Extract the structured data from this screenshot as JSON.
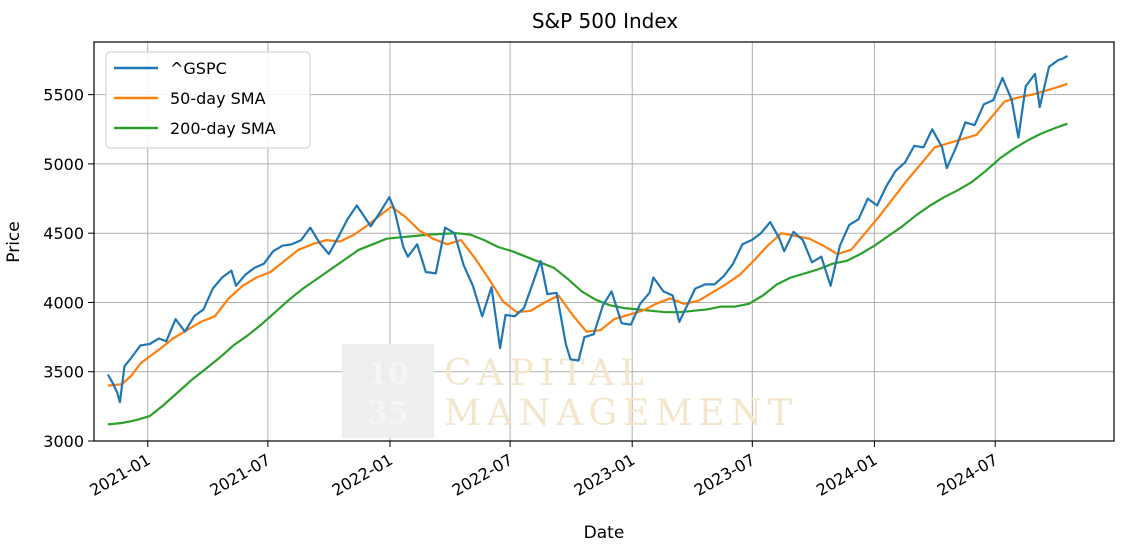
{
  "chart_data": {
    "type": "line",
    "title": "S&P 500 Index",
    "xlabel": "Date",
    "ylabel": "Price",
    "xlim": [
      "2020-10-12",
      "2024-12-27"
    ],
    "ylim": [
      3000,
      5880
    ],
    "grid": true,
    "legend_position": "top-left",
    "x_ticks": [
      "2021-01",
      "2021-07",
      "2022-01",
      "2022-07",
      "2023-01",
      "2023-07",
      "2024-01",
      "2024-07"
    ],
    "y_ticks": [
      3000,
      3500,
      4000,
      4500,
      5000,
      5500
    ],
    "series": [
      {
        "name": "^GSPC",
        "color": "#1f77b4",
        "points": [
          [
            "2020-11-02",
            3480
          ],
          [
            "2020-11-09",
            3420
          ],
          [
            "2020-11-16",
            3350
          ],
          [
            "2020-11-20",
            3280
          ],
          [
            "2020-11-27",
            3540
          ],
          [
            "2020-12-07",
            3600
          ],
          [
            "2020-12-21",
            3690
          ],
          [
            "2021-01-04",
            3700
          ],
          [
            "2021-01-18",
            3740
          ],
          [
            "2021-01-29",
            3720
          ],
          [
            "2021-02-12",
            3880
          ],
          [
            "2021-02-26",
            3790
          ],
          [
            "2021-03-12",
            3900
          ],
          [
            "2021-03-26",
            3950
          ],
          [
            "2021-04-09",
            4100
          ],
          [
            "2021-04-23",
            4180
          ],
          [
            "2021-05-07",
            4230
          ],
          [
            "2021-05-14",
            4120
          ],
          [
            "2021-05-28",
            4200
          ],
          [
            "2021-06-11",
            4250
          ],
          [
            "2021-06-25",
            4280
          ],
          [
            "2021-07-09",
            4370
          ],
          [
            "2021-07-23",
            4410
          ],
          [
            "2021-08-06",
            4420
          ],
          [
            "2021-08-20",
            4450
          ],
          [
            "2021-09-03",
            4540
          ],
          [
            "2021-09-17",
            4430
          ],
          [
            "2021-10-01",
            4350
          ],
          [
            "2021-10-15",
            4470
          ],
          [
            "2021-10-29",
            4600
          ],
          [
            "2021-11-12",
            4700
          ],
          [
            "2021-11-26",
            4600
          ],
          [
            "2021-12-03",
            4550
          ],
          [
            "2021-12-17",
            4650
          ],
          [
            "2021-12-31",
            4760
          ],
          [
            "2022-01-07",
            4680
          ],
          [
            "2022-01-21",
            4400
          ],
          [
            "2022-01-28",
            4330
          ],
          [
            "2022-02-11",
            4420
          ],
          [
            "2022-02-24",
            4220
          ],
          [
            "2022-03-11",
            4210
          ],
          [
            "2022-03-25",
            4540
          ],
          [
            "2022-04-08",
            4500
          ],
          [
            "2022-04-22",
            4270
          ],
          [
            "2022-05-06",
            4120
          ],
          [
            "2022-05-20",
            3900
          ],
          [
            "2022-06-03",
            4110
          ],
          [
            "2022-06-16",
            3670
          ],
          [
            "2022-06-24",
            3910
          ],
          [
            "2022-07-08",
            3900
          ],
          [
            "2022-07-22",
            3960
          ],
          [
            "2022-08-05",
            4150
          ],
          [
            "2022-08-16",
            4300
          ],
          [
            "2022-08-26",
            4060
          ],
          [
            "2022-09-09",
            4070
          ],
          [
            "2022-09-23",
            3700
          ],
          [
            "2022-09-30",
            3590
          ],
          [
            "2022-10-12",
            3580
          ],
          [
            "2022-10-21",
            3750
          ],
          [
            "2022-11-04",
            3770
          ],
          [
            "2022-11-18",
            3980
          ],
          [
            "2022-12-01",
            4080
          ],
          [
            "2022-12-16",
            3850
          ],
          [
            "2022-12-30",
            3840
          ],
          [
            "2023-01-13",
            3990
          ],
          [
            "2023-01-27",
            4070
          ],
          [
            "2023-02-02",
            4180
          ],
          [
            "2023-02-17",
            4080
          ],
          [
            "2023-03-03",
            4050
          ],
          [
            "2023-03-13",
            3860
          ],
          [
            "2023-03-24",
            3970
          ],
          [
            "2023-04-06",
            4100
          ],
          [
            "2023-04-21",
            4130
          ],
          [
            "2023-05-05",
            4130
          ],
          [
            "2023-05-19",
            4190
          ],
          [
            "2023-06-02",
            4280
          ],
          [
            "2023-06-16",
            4420
          ],
          [
            "2023-06-30",
            4450
          ],
          [
            "2023-07-14",
            4500
          ],
          [
            "2023-07-28",
            4580
          ],
          [
            "2023-08-11",
            4460
          ],
          [
            "2023-08-18",
            4370
          ],
          [
            "2023-09-01",
            4510
          ],
          [
            "2023-09-15",
            4450
          ],
          [
            "2023-09-29",
            4290
          ],
          [
            "2023-10-13",
            4330
          ],
          [
            "2023-10-27",
            4120
          ],
          [
            "2023-11-10",
            4410
          ],
          [
            "2023-11-24",
            4560
          ],
          [
            "2023-12-08",
            4600
          ],
          [
            "2023-12-22",
            4750
          ],
          [
            "2024-01-05",
            4700
          ],
          [
            "2024-01-19",
            4840
          ],
          [
            "2024-02-02",
            4950
          ],
          [
            "2024-02-16",
            5010
          ],
          [
            "2024-03-01",
            5130
          ],
          [
            "2024-03-15",
            5120
          ],
          [
            "2024-03-28",
            5250
          ],
          [
            "2024-04-12",
            5120
          ],
          [
            "2024-04-19",
            4970
          ],
          [
            "2024-05-03",
            5120
          ],
          [
            "2024-05-17",
            5300
          ],
          [
            "2024-05-31",
            5280
          ],
          [
            "2024-06-14",
            5430
          ],
          [
            "2024-06-28",
            5460
          ],
          [
            "2024-07-12",
            5620
          ],
          [
            "2024-07-26",
            5460
          ],
          [
            "2024-08-05",
            5190
          ],
          [
            "2024-08-16",
            5560
          ],
          [
            "2024-08-30",
            5650
          ],
          [
            "2024-09-06",
            5410
          ],
          [
            "2024-09-20",
            5700
          ],
          [
            "2024-10-04",
            5750
          ],
          [
            "2024-10-11",
            5760
          ],
          [
            "2024-10-18",
            5780
          ]
        ]
      },
      {
        "name": "50-day SMA",
        "color": "#ff7f0e",
        "points": [
          [
            "2020-11-02",
            3400
          ],
          [
            "2020-11-23",
            3410
          ],
          [
            "2020-12-07",
            3470
          ],
          [
            "2020-12-21",
            3560
          ],
          [
            "2021-01-04",
            3610
          ],
          [
            "2021-01-18",
            3660
          ],
          [
            "2021-02-08",
            3740
          ],
          [
            "2021-03-01",
            3800
          ],
          [
            "2021-03-22",
            3860
          ],
          [
            "2021-04-12",
            3900
          ],
          [
            "2021-05-03",
            4030
          ],
          [
            "2021-05-24",
            4120
          ],
          [
            "2021-06-14",
            4180
          ],
          [
            "2021-07-05",
            4220
          ],
          [
            "2021-07-26",
            4300
          ],
          [
            "2021-08-16",
            4380
          ],
          [
            "2021-09-06",
            4420
          ],
          [
            "2021-09-27",
            4450
          ],
          [
            "2021-10-18",
            4440
          ],
          [
            "2021-11-08",
            4490
          ],
          [
            "2021-11-29",
            4560
          ],
          [
            "2021-12-20",
            4640
          ],
          [
            "2022-01-03",
            4690
          ],
          [
            "2022-01-24",
            4620
          ],
          [
            "2022-02-14",
            4520
          ],
          [
            "2022-03-07",
            4460
          ],
          [
            "2022-03-28",
            4420
          ],
          [
            "2022-04-18",
            4450
          ],
          [
            "2022-05-09",
            4320
          ],
          [
            "2022-05-30",
            4170
          ],
          [
            "2022-06-20",
            4010
          ],
          [
            "2022-07-11",
            3930
          ],
          [
            "2022-08-01",
            3940
          ],
          [
            "2022-08-22",
            4000
          ],
          [
            "2022-09-12",
            4050
          ],
          [
            "2022-10-03",
            3910
          ],
          [
            "2022-10-24",
            3790
          ],
          [
            "2022-11-14",
            3800
          ],
          [
            "2022-12-05",
            3880
          ],
          [
            "2022-12-26",
            3910
          ],
          [
            "2023-01-16",
            3940
          ],
          [
            "2023-02-06",
            3990
          ],
          [
            "2023-02-27",
            4030
          ],
          [
            "2023-03-20",
            3990
          ],
          [
            "2023-04-10",
            4010
          ],
          [
            "2023-05-01",
            4070
          ],
          [
            "2023-05-22",
            4130
          ],
          [
            "2023-06-12",
            4200
          ],
          [
            "2023-07-03",
            4300
          ],
          [
            "2023-07-24",
            4410
          ],
          [
            "2023-08-14",
            4500
          ],
          [
            "2023-09-04",
            4480
          ],
          [
            "2023-09-25",
            4460
          ],
          [
            "2023-10-16",
            4410
          ],
          [
            "2023-11-06",
            4350
          ],
          [
            "2023-11-27",
            4380
          ],
          [
            "2023-12-18",
            4500
          ],
          [
            "2024-01-08",
            4620
          ],
          [
            "2024-01-29",
            4750
          ],
          [
            "2024-02-19",
            4880
          ],
          [
            "2024-03-11",
            5000
          ],
          [
            "2024-04-01",
            5120
          ],
          [
            "2024-04-22",
            5150
          ],
          [
            "2024-05-13",
            5180
          ],
          [
            "2024-06-03",
            5210
          ],
          [
            "2024-06-24",
            5330
          ],
          [
            "2024-07-15",
            5450
          ],
          [
            "2024-08-05",
            5480
          ],
          [
            "2024-08-26",
            5500
          ],
          [
            "2024-09-16",
            5530
          ],
          [
            "2024-10-07",
            5560
          ],
          [
            "2024-10-18",
            5580
          ]
        ]
      },
      {
        "name": "200-day SMA",
        "color": "#2ca02c",
        "points": [
          [
            "2020-11-02",
            3120
          ],
          [
            "2020-11-23",
            3130
          ],
          [
            "2020-12-14",
            3150
          ],
          [
            "2021-01-04",
            3180
          ],
          [
            "2021-01-25",
            3260
          ],
          [
            "2021-02-15",
            3350
          ],
          [
            "2021-03-08",
            3440
          ],
          [
            "2021-03-29",
            3520
          ],
          [
            "2021-04-19",
            3600
          ],
          [
            "2021-05-10",
            3690
          ],
          [
            "2021-05-31",
            3760
          ],
          [
            "2021-06-21",
            3840
          ],
          [
            "2021-07-12",
            3930
          ],
          [
            "2021-08-02",
            4020
          ],
          [
            "2021-08-23",
            4100
          ],
          [
            "2021-09-13",
            4170
          ],
          [
            "2021-10-04",
            4240
          ],
          [
            "2021-10-25",
            4310
          ],
          [
            "2021-11-15",
            4380
          ],
          [
            "2021-12-06",
            4420
          ],
          [
            "2021-12-27",
            4460
          ],
          [
            "2022-01-17",
            4470
          ],
          [
            "2022-02-07",
            4480
          ],
          [
            "2022-02-28",
            4490
          ],
          [
            "2022-03-21",
            4495
          ],
          [
            "2022-04-11",
            4500
          ],
          [
            "2022-05-02",
            4490
          ],
          [
            "2022-05-23",
            4450
          ],
          [
            "2022-06-13",
            4400
          ],
          [
            "2022-07-04",
            4370
          ],
          [
            "2022-07-25",
            4330
          ],
          [
            "2022-08-15",
            4290
          ],
          [
            "2022-09-05",
            4250
          ],
          [
            "2022-09-26",
            4170
          ],
          [
            "2022-10-17",
            4080
          ],
          [
            "2022-11-07",
            4020
          ],
          [
            "2022-11-28",
            3980
          ],
          [
            "2022-12-19",
            3960
          ],
          [
            "2023-01-09",
            3950
          ],
          [
            "2023-01-30",
            3940
          ],
          [
            "2023-02-20",
            3930
          ],
          [
            "2023-03-13",
            3930
          ],
          [
            "2023-04-03",
            3940
          ],
          [
            "2023-04-24",
            3950
          ],
          [
            "2023-05-15",
            3970
          ],
          [
            "2023-06-05",
            3970
          ],
          [
            "2023-06-26",
            3990
          ],
          [
            "2023-07-17",
            4050
          ],
          [
            "2023-08-07",
            4130
          ],
          [
            "2023-08-28",
            4180
          ],
          [
            "2023-09-18",
            4210
          ],
          [
            "2023-10-09",
            4240
          ],
          [
            "2023-10-30",
            4280
          ],
          [
            "2023-11-20",
            4300
          ],
          [
            "2023-12-11",
            4350
          ],
          [
            "2024-01-01",
            4410
          ],
          [
            "2024-01-22",
            4480
          ],
          [
            "2024-02-12",
            4550
          ],
          [
            "2024-03-04",
            4630
          ],
          [
            "2024-03-25",
            4700
          ],
          [
            "2024-04-15",
            4760
          ],
          [
            "2024-05-06",
            4810
          ],
          [
            "2024-05-27",
            4870
          ],
          [
            "2024-06-17",
            4950
          ],
          [
            "2024-07-08",
            5040
          ],
          [
            "2024-07-29",
            5110
          ],
          [
            "2024-08-19",
            5170
          ],
          [
            "2024-09-09",
            5220
          ],
          [
            "2024-09-30",
            5260
          ],
          [
            "2024-10-18",
            5290
          ]
        ]
      }
    ]
  },
  "watermark": {
    "number_top": "10",
    "number_bottom": "35",
    "line1": "CAPITAL",
    "line2": "MANAGEMENT"
  }
}
